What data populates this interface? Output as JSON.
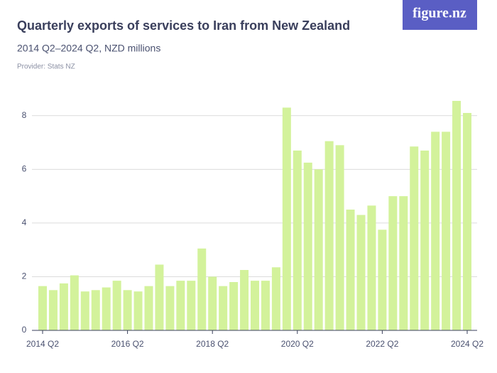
{
  "brand": "figure.nz",
  "chart_data": {
    "type": "bar",
    "title": "Quarterly exports of services to Iran from New Zealand",
    "subtitle": "2014 Q2–2024 Q2, NZD millions",
    "source": "Provider: Stats NZ",
    "categories": [
      "2014 Q2",
      null,
      null,
      null,
      null,
      null,
      null,
      null,
      "2016 Q2",
      null,
      null,
      null,
      null,
      null,
      null,
      null,
      "2018 Q2",
      null,
      null,
      null,
      null,
      null,
      null,
      null,
      "2020 Q2",
      null,
      null,
      null,
      null,
      null,
      null,
      null,
      "2022 Q2",
      null,
      null,
      null,
      null,
      null,
      null,
      null,
      "2024 Q2"
    ],
    "values": [
      1.65,
      1.5,
      1.75,
      2.05,
      1.45,
      1.5,
      1.6,
      1.85,
      1.5,
      1.45,
      1.65,
      2.45,
      1.65,
      1.85,
      1.85,
      3.05,
      2.0,
      1.65,
      1.8,
      2.25,
      1.85,
      1.85,
      2.35,
      8.3,
      6.7,
      6.25,
      6.0,
      7.05,
      6.9,
      4.5,
      4.3,
      4.65,
      3.75,
      5.0,
      5.0,
      6.85,
      6.7,
      7.4,
      7.4,
      8.55,
      8.1
    ],
    "color": "#d3f29b",
    "ylim": [
      0,
      9
    ],
    "yticks": [
      0,
      2,
      4,
      6,
      8
    ],
    "grid": true
  }
}
